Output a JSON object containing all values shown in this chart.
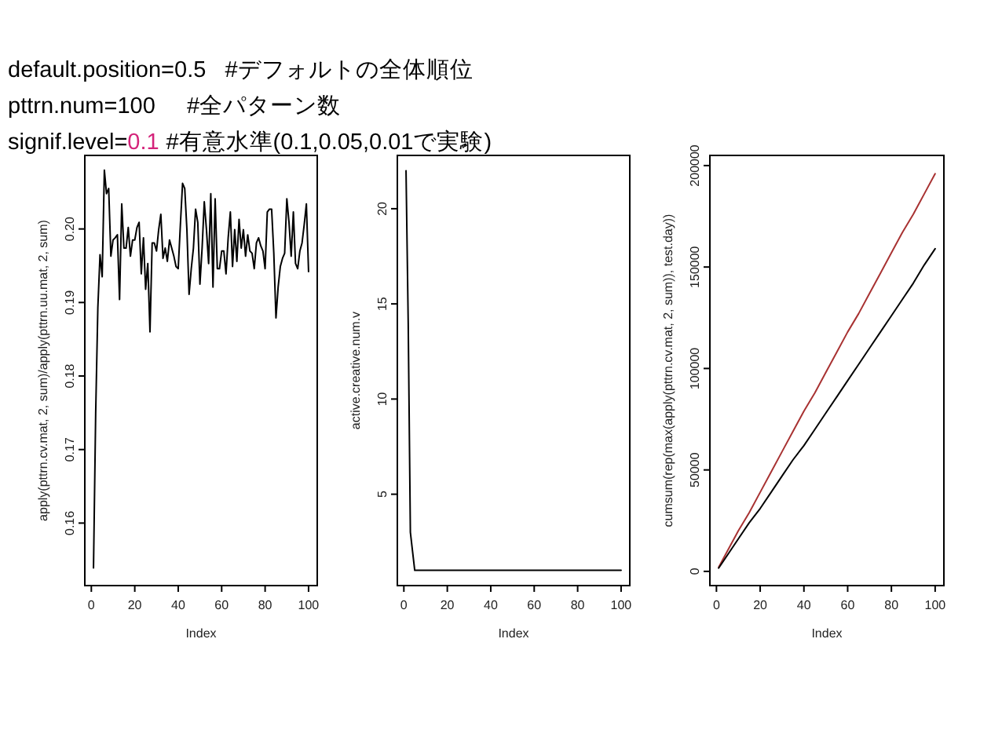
{
  "chart_data": [
    {
      "type": "line",
      "annotations": [
        "default.position=0.5   #デフォルトの全体順位",
        "pttrn.num=100     #全パターン数",
        "signif.level=",
        "0.1",
        "#有意水準(0.1,0.05,0.01で実験)"
      ],
      "xlabel": "Index",
      "ylabel": "apply(pttrn.cv.mat, 2, sum)/apply(pttrn.uu.mat, 2, sum)",
      "color": "#000000",
      "x": [
        1,
        2,
        3,
        4,
        5,
        6,
        7,
        8,
        9,
        10,
        11,
        12,
        13,
        14,
        15,
        16,
        17,
        18,
        19,
        20,
        21,
        22,
        23,
        24,
        25,
        26,
        27,
        28,
        29,
        30,
        31,
        32,
        33,
        34,
        35,
        36,
        37,
        38,
        39,
        40,
        41,
        42,
        43,
        44,
        45,
        46,
        47,
        48,
        49,
        50,
        51,
        52,
        53,
        54,
        55,
        56,
        57,
        58,
        59,
        60,
        61,
        62,
        63,
        64,
        65,
        66,
        67,
        68,
        69,
        70,
        71,
        72,
        73,
        74,
        75,
        76,
        77,
        78,
        79,
        80,
        81,
        82,
        83,
        84,
        85,
        86,
        87,
        88,
        89,
        90,
        91,
        92,
        93,
        94,
        95,
        96,
        97,
        98,
        99,
        100
      ],
      "values": [
        0.1539,
        0.1749,
        0.1893,
        0.1965,
        0.1935,
        0.208,
        0.2048,
        0.2055,
        0.1963,
        0.1985,
        0.1988,
        0.1992,
        0.1904,
        0.2034,
        0.1974,
        0.1974,
        0.2002,
        0.1963,
        0.1985,
        0.1985,
        0.2002,
        0.2009,
        0.1939,
        0.1988,
        0.1918,
        0.1953,
        0.186,
        0.1981,
        0.1981,
        0.197,
        0.1999,
        0.202,
        0.196,
        0.1974,
        0.1956,
        0.1985,
        0.1974,
        0.1963,
        0.1949,
        0.1946,
        0.2006,
        0.2062,
        0.2055,
        0.1999,
        0.1911,
        0.1946,
        0.1974,
        0.2027,
        0.2009,
        0.1925,
        0.1974,
        0.2037,
        0.1999,
        0.1953,
        0.2048,
        0.1921,
        0.2041,
        0.1946,
        0.1946,
        0.197,
        0.197,
        0.1939,
        0.1988,
        0.2023,
        0.1949,
        0.1999,
        0.1956,
        0.2013,
        0.1974,
        0.1999,
        0.1963,
        0.1992,
        0.197,
        0.1967,
        0.1946,
        0.1981,
        0.1988,
        0.1977,
        0.197,
        0.1946,
        0.2023,
        0.2027,
        0.2027,
        0.1967,
        0.1879,
        0.1921,
        0.1949,
        0.196,
        0.1967,
        0.2041,
        0.2009,
        0.1963,
        0.2023,
        0.1953,
        0.1946,
        0.197,
        0.1981,
        0.2006,
        0.2034,
        0.1942
      ],
      "xlim": [
        -3,
        104
      ],
      "ylim": [
        0.1515,
        0.21
      ],
      "xticks": [
        0,
        20,
        40,
        60,
        80,
        100
      ],
      "yticks": [
        0.16,
        0.17,
        0.18,
        0.19,
        {
          "value": 0.2,
          "label": "0.20"
        }
      ]
    },
    {
      "type": "line",
      "xlabel": "Index",
      "ylabel": "active.creative.num.v",
      "color": "#000000",
      "x": [
        1,
        2,
        3,
        4,
        5,
        6,
        7,
        8,
        9,
        10,
        11,
        12,
        13,
        14,
        15,
        16,
        17,
        18,
        19,
        20,
        21,
        22,
        23,
        24,
        25,
        26,
        27,
        28,
        29,
        30,
        31,
        32,
        33,
        34,
        35,
        36,
        37,
        38,
        39,
        40,
        41,
        42,
        43,
        44,
        45,
        46,
        47,
        48,
        49,
        50,
        51,
        52,
        53,
        54,
        55,
        56,
        57,
        58,
        59,
        60,
        61,
        62,
        63,
        64,
        65,
        66,
        67,
        68,
        69,
        70,
        71,
        72,
        73,
        74,
        75,
        76,
        77,
        78,
        79,
        80,
        81,
        82,
        83,
        84,
        85,
        86,
        87,
        88,
        89,
        90,
        91,
        92,
        93,
        94,
        95,
        96,
        97,
        98,
        99,
        100
      ],
      "values": [
        22,
        14,
        3,
        2,
        1,
        1,
        1,
        1,
        1,
        1,
        1,
        1,
        1,
        1,
        1,
        1,
        1,
        1,
        1,
        1,
        1,
        1,
        1,
        1,
        1,
        1,
        1,
        1,
        1,
        1,
        1,
        1,
        1,
        1,
        1,
        1,
        1,
        1,
        1,
        1,
        1,
        1,
        1,
        1,
        1,
        1,
        1,
        1,
        1,
        1,
        1,
        1,
        1,
        1,
        1,
        1,
        1,
        1,
        1,
        1,
        1,
        1,
        1,
        1,
        1,
        1,
        1,
        1,
        1,
        1,
        1,
        1,
        1,
        1,
        1,
        1,
        1,
        1,
        1,
        1,
        1,
        1,
        1,
        1,
        1,
        1,
        1,
        1,
        1,
        1,
        1,
        1,
        1,
        1,
        1,
        1,
        1,
        1,
        1,
        1
      ],
      "xlim": [
        -3,
        104
      ],
      "ylim": [
        0.2,
        22.8
      ],
      "xticks": [
        0,
        20,
        40,
        60,
        80,
        100
      ],
      "yticks": [
        5,
        10,
        15,
        20
      ]
    },
    {
      "type": "line",
      "xlabel": "Index",
      "ylabel": "cumsum(rep(max(apply(pttrn.cv.mat, 2, sum)), test.day))",
      "x": [
        1,
        5,
        10,
        15,
        20,
        25,
        30,
        35,
        40,
        45,
        50,
        55,
        60,
        65,
        70,
        75,
        80,
        85,
        90,
        95,
        100
      ],
      "series": [
        {
          "color": "#a83232",
          "values": [
            2000,
            10000,
            20000,
            29000,
            39000,
            49000,
            59000,
            69000,
            79000,
            88000,
            98000,
            108000,
            118000,
            127000,
            137000,
            147000,
            157000,
            167000,
            176000,
            186000,
            196000
          ]
        },
        {
          "color": "#000000",
          "values": [
            1600,
            8000,
            16000,
            24000,
            31000,
            39000,
            47000,
            55000,
            62000,
            70000,
            78000,
            86000,
            94000,
            102000,
            110000,
            118000,
            126000,
            134000,
            142000,
            151000,
            159000
          ]
        }
      ],
      "xlim": [
        -3,
        104
      ],
      "ylim": [
        -7000,
        205000
      ],
      "xticks": [
        0,
        20,
        40,
        60,
        80,
        100
      ],
      "yticks": [
        0,
        50000,
        100000,
        150000,
        200000
      ]
    }
  ]
}
